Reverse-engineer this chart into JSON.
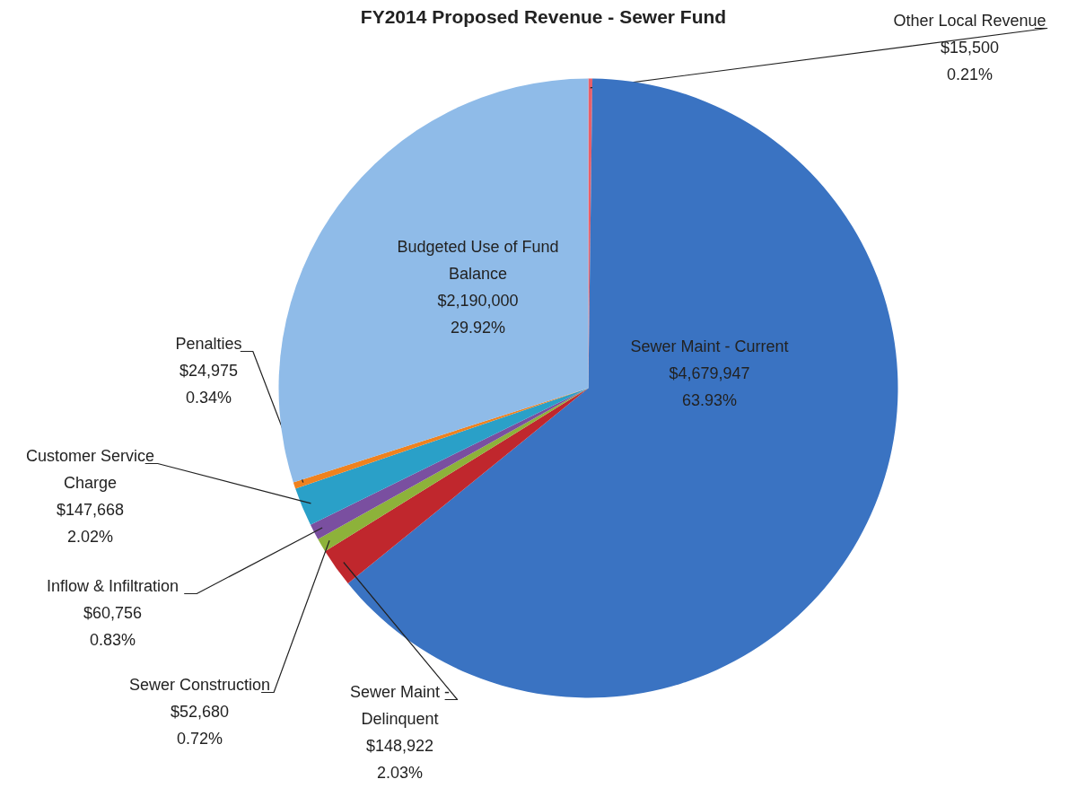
{
  "chart_data": {
    "type": "pie",
    "title": "FY2014 Proposed Revenue - Sewer Fund",
    "categories": [
      "Other Local Revenue",
      "Sewer Maint - Current",
      "Sewer Maint - Delinquent",
      "Sewer Construction",
      "Inflow & Infiltration",
      "Customer Service Charge",
      "Penalties",
      "Budgeted Use of Fund Balance"
    ],
    "values": [
      15500,
      4679947,
      148922,
      52680,
      60756,
      147668,
      24975,
      2190000
    ],
    "value_labels": [
      "$15,500\n0.21%",
      "$4,679,947\n63.93%",
      "$148,922\n2.03%",
      "$52,680\n0.72%",
      "$60,756\n0.83%",
      "$147,668\n2.02%",
      "$24,975\n0.34%",
      "$2,190,000\n29.92%"
    ],
    "colors": [
      "#e8606a",
      "#3a73c2",
      "#c0272d",
      "#8db23a",
      "#7a4fa0",
      "#2aa0c8",
      "#f0821e",
      "#8fbbe8"
    ]
  }
}
